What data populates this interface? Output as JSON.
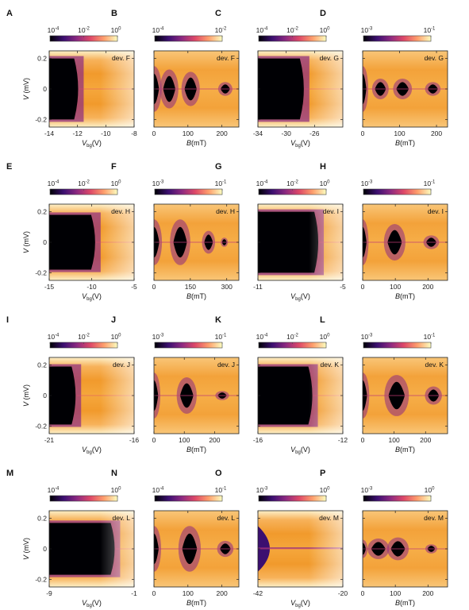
{
  "chart_data": [
    {
      "letter": "A",
      "type": "heatmap",
      "device": "dev. F",
      "cbar": [
        "10-4",
        "10-2",
        "100"
      ],
      "xaxis": "Vbg",
      "xticks": [
        -14,
        -12,
        -10,
        -8
      ],
      "xlim": [
        -14,
        -8
      ],
      "ylabel": "V (mV)",
      "yticks": [
        -0.2,
        0,
        0.2
      ],
      "ylim": [
        -0.25,
        0.25
      ]
    },
    {
      "letter": "B",
      "type": "heatmap",
      "device": "dev. F",
      "cbar": [
        "10-4",
        "10-2"
      ],
      "xaxis": "B",
      "xticks": [
        0,
        100,
        200
      ],
      "xlim": [
        0,
        250
      ],
      "yticks": [
        -0.2,
        0,
        0.2
      ],
      "ylim": [
        -0.25,
        0.25
      ]
    },
    {
      "letter": "C",
      "type": "heatmap",
      "device": "dev. G",
      "cbar": [
        "10-4",
        "10-2",
        "100"
      ],
      "xaxis": "Vbg",
      "xticks": [
        -34,
        -30,
        -26
      ],
      "xlim": [
        -34,
        -22
      ],
      "yticks": [
        -0.2,
        0,
        0.2
      ],
      "ylim": [
        -0.25,
        0.25
      ]
    },
    {
      "letter": "D",
      "type": "heatmap",
      "device": "dev. G",
      "cbar": [
        "10-3",
        "10-1"
      ],
      "xaxis": "B",
      "xticks": [
        0,
        100,
        200
      ],
      "xlim": [
        0,
        230
      ],
      "yticks": [
        -0.2,
        0,
        0.2
      ],
      "ylim": [
        -0.25,
        0.25
      ]
    },
    {
      "letter": "E",
      "type": "heatmap",
      "device": "dev. H",
      "cbar": [
        "10-4",
        "10-2",
        "100"
      ],
      "xaxis": "Vbg",
      "xticks": [
        -15,
        -10,
        -5
      ],
      "xlim": [
        -15,
        -5
      ],
      "ylabel": "V (mV)",
      "yticks": [
        -0.2,
        0,
        0.2
      ],
      "ylim": [
        -0.25,
        0.25
      ]
    },
    {
      "letter": "F",
      "type": "heatmap",
      "device": "dev. H",
      "cbar": [
        "10-3",
        "10-1"
      ],
      "xaxis": "B",
      "xticks": [
        0,
        150,
        300
      ],
      "xlim": [
        0,
        350
      ],
      "yticks": [
        -0.2,
        0,
        0.2
      ],
      "ylim": [
        -0.25,
        0.25
      ]
    },
    {
      "letter": "G",
      "type": "heatmap",
      "device": "dev. I",
      "cbar": [
        "10-4",
        "10-2",
        "100"
      ],
      "xaxis": "Vbg",
      "xticks": [
        -11,
        -5
      ],
      "xlim": [
        -11,
        -5
      ],
      "yticks": [
        -0.2,
        0,
        0.2
      ],
      "ylim": [
        -0.25,
        0.25
      ]
    },
    {
      "letter": "H",
      "type": "heatmap",
      "device": "dev. I",
      "cbar": [
        "10-3",
        "10-1"
      ],
      "xaxis": "B",
      "xticks": [
        0,
        100,
        200
      ],
      "xlim": [
        0,
        260
      ],
      "yticks": [
        -0.2,
        0,
        0.2
      ],
      "ylim": [
        -0.25,
        0.25
      ]
    },
    {
      "letter": "I",
      "type": "heatmap",
      "device": "dev. J",
      "cbar": [
        "10-4",
        "10-2",
        "100"
      ],
      "xaxis": "Vbg",
      "xticks": [
        -21,
        -16
      ],
      "xlim": [
        -21,
        -16
      ],
      "ylabel": "V (mV)",
      "yticks": [
        -0.2,
        0,
        0.2
      ],
      "ylim": [
        -0.25,
        0.25
      ]
    },
    {
      "letter": "J",
      "type": "heatmap",
      "device": "dev. J",
      "cbar": [
        "10-3",
        "10-1"
      ],
      "xaxis": "B",
      "xticks": [
        0,
        100,
        200
      ],
      "xlim": [
        0,
        280
      ],
      "yticks": [
        -0.2,
        0,
        0.2
      ],
      "ylim": [
        -0.25,
        0.25
      ]
    },
    {
      "letter": "K",
      "type": "heatmap",
      "device": "dev. K",
      "cbar": [
        "10-4",
        "10-2",
        "100"
      ],
      "xaxis": "Vbg",
      "xticks": [
        -16,
        -12
      ],
      "xlim": [
        -16,
        -12
      ],
      "yticks": [
        -0.2,
        0,
        0.2
      ],
      "ylim": [
        -0.25,
        0.25
      ]
    },
    {
      "letter": "L",
      "type": "heatmap",
      "device": "dev. K",
      "cbar": [
        "10-3",
        "10-1"
      ],
      "xaxis": "B",
      "xticks": [
        0,
        100,
        200
      ],
      "xlim": [
        0,
        270
      ],
      "yticks": [
        -0.2,
        0,
        0.2
      ],
      "ylim": [
        -0.25,
        0.25
      ]
    },
    {
      "letter": "M",
      "type": "heatmap",
      "device": "dev. L",
      "cbar": [
        "10-4",
        "100"
      ],
      "xaxis": "Vbg",
      "xticks": [
        -9,
        -1
      ],
      "xlim": [
        -9,
        -1
      ],
      "ylabel": "V (mV)",
      "yticks": [
        -0.2,
        0,
        0.2
      ],
      "ylim": [
        -0.25,
        0.25
      ]
    },
    {
      "letter": "N",
      "type": "heatmap",
      "device": "dev. L",
      "cbar": [
        "10-4",
        "10-1"
      ],
      "xaxis": "B",
      "xticks": [
        0,
        100,
        200
      ],
      "xlim": [
        0,
        250
      ],
      "yticks": [
        -0.2,
        0,
        0.2
      ],
      "ylim": [
        -0.25,
        0.25
      ]
    },
    {
      "letter": "O",
      "type": "heatmap",
      "device": "dev. M",
      "cbar": [
        "10-3",
        "100"
      ],
      "xaxis": "Vbg",
      "xticks": [
        -42,
        -20
      ],
      "xlim": [
        -42,
        -20
      ],
      "yticks": [
        -0.2,
        0,
        0.2
      ],
      "ylim": [
        -0.25,
        0.25
      ]
    },
    {
      "letter": "P",
      "type": "heatmap",
      "device": "dev. M",
      "cbar": [
        "10-3",
        "100"
      ],
      "xaxis": "B",
      "xticks": [
        0,
        100,
        200
      ],
      "xlim": [
        0,
        260
      ],
      "yticks": [
        -0.2,
        0,
        0.2
      ],
      "ylim": [
        -0.25,
        0.25
      ]
    }
  ],
  "colormap": {
    "name": "inferno",
    "stops": [
      "#000004",
      "#3b0f70",
      "#8c2981",
      "#de4968",
      "#fe9f6d",
      "#fcfdbf"
    ]
  },
  "axis_labels": {
    "V": "V",
    "V_unit": "(mV)",
    "Vbg_main": "V",
    "Vbg_sub": "bg",
    "Vbg_unit": "(V)",
    "B_main": "B",
    "B_unit": "(mT)"
  }
}
